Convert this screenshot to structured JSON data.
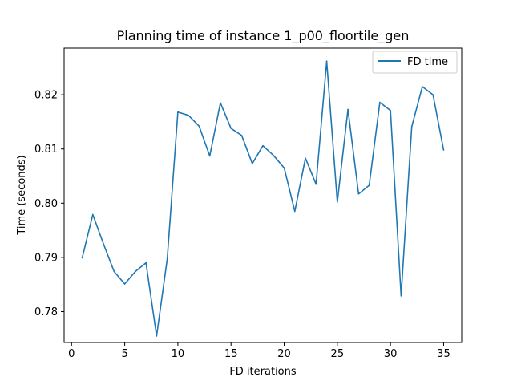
{
  "chart_data": {
    "type": "line",
    "title": "Planning time of instance 1_p00_floortile_gen",
    "xlabel": "FD iterations",
    "ylabel": "Time (seconds)",
    "xlim": [
      -0.7,
      36.7
    ],
    "ylim": [
      0.7743,
      0.8286
    ],
    "xticks": [
      0,
      5,
      10,
      15,
      20,
      25,
      30,
      35
    ],
    "yticks": [
      0.78,
      0.79,
      0.8,
      0.81,
      0.82
    ],
    "ytick_labels": [
      "0.78",
      "0.79",
      "0.80",
      "0.81",
      "0.82"
    ],
    "grid": false,
    "legend_position": "top-right",
    "series": [
      {
        "name": "FD time",
        "color": "#1f77b4",
        "x": [
          1,
          2,
          3,
          4,
          5,
          6,
          7,
          8,
          9,
          10,
          11,
          12,
          13,
          14,
          15,
          16,
          17,
          18,
          19,
          20,
          21,
          22,
          23,
          24,
          25,
          26,
          27,
          28,
          29,
          30,
          31,
          32,
          33,
          34,
          35
        ],
        "y": [
          0.7899,
          0.7979,
          0.7925,
          0.7874,
          0.7851,
          0.7874,
          0.789,
          0.7755,
          0.7897,
          0.8168,
          0.8162,
          0.8142,
          0.8087,
          0.8185,
          0.8138,
          0.8125,
          0.8073,
          0.8106,
          0.8088,
          0.8065,
          0.7985,
          0.8083,
          0.8035,
          0.8262,
          0.8002,
          0.8173,
          0.8017,
          0.8033,
          0.8186,
          0.8171,
          0.7829,
          0.8141,
          0.8215,
          0.82,
          0.8098
        ]
      }
    ]
  }
}
